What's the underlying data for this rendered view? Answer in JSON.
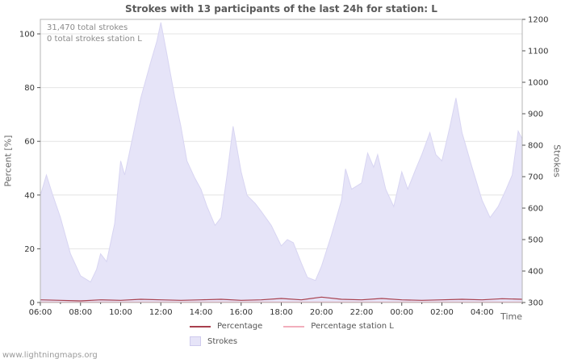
{
  "page": {
    "watermark": "www.lightningmaps.org"
  },
  "chart_data": {
    "type": "area",
    "title": "Strokes with 13 participants of the last 24h for station: L",
    "annotations": [
      "31,470 total strokes",
      "0 total strokes station L"
    ],
    "x_axis": {
      "label": "Time",
      "ticks": [
        "06:00",
        "08:00",
        "10:00",
        "12:00",
        "14:00",
        "16:00",
        "18:00",
        "20:00",
        "22:00",
        "00:00",
        "02:00",
        "04:00"
      ],
      "tick_hours": [
        0,
        2,
        4,
        6,
        8,
        10,
        12,
        14,
        16,
        18,
        20,
        22
      ],
      "range_hours": [
        0,
        24
      ]
    },
    "y_left": {
      "label": "Percent  [%]",
      "ticks": [
        0,
        20,
        40,
        60,
        80,
        100
      ],
      "range": [
        0,
        100
      ]
    },
    "y_right": {
      "label": "Strokes",
      "ticks": [
        300,
        400,
        500,
        600,
        700,
        800,
        900,
        1000,
        1100,
        1200
      ],
      "range": [
        300,
        1200
      ]
    },
    "style": {
      "grid": "#e4e4e4",
      "border": "#b4b4b4",
      "text": "#333333",
      "tick": "#555555"
    },
    "series": [
      {
        "name": "Strokes",
        "type": "area",
        "axis": "right",
        "color": "#e6e4f8",
        "edge": "#d8d5f2",
        "points": [
          [
            0,
            640
          ],
          [
            0.3,
            705
          ],
          [
            0.6,
            645
          ],
          [
            1,
            570
          ],
          [
            1.5,
            455
          ],
          [
            2,
            385
          ],
          [
            2.5,
            365
          ],
          [
            2.8,
            405
          ],
          [
            3,
            455
          ],
          [
            3.3,
            430
          ],
          [
            3.7,
            550
          ],
          [
            4,
            750
          ],
          [
            4.2,
            705
          ],
          [
            4.5,
            795
          ],
          [
            5,
            950
          ],
          [
            5.5,
            1065
          ],
          [
            5.8,
            1130
          ],
          [
            6,
            1190
          ],
          [
            6.3,
            1090
          ],
          [
            6.7,
            950
          ],
          [
            7,
            860
          ],
          [
            7.3,
            750
          ],
          [
            7.7,
            695
          ],
          [
            8,
            660
          ],
          [
            8.3,
            605
          ],
          [
            8.7,
            545
          ],
          [
            9,
            570
          ],
          [
            9.3,
            705
          ],
          [
            9.6,
            860
          ],
          [
            10,
            715
          ],
          [
            10.3,
            640
          ],
          [
            10.7,
            615
          ],
          [
            11,
            590
          ],
          [
            11.5,
            545
          ],
          [
            12,
            480
          ],
          [
            12.3,
            500
          ],
          [
            12.6,
            490
          ],
          [
            13,
            425
          ],
          [
            13.3,
            380
          ],
          [
            13.7,
            370
          ],
          [
            14,
            415
          ],
          [
            14.5,
            515
          ],
          [
            15,
            625
          ],
          [
            15.2,
            725
          ],
          [
            15.5,
            660
          ],
          [
            16,
            680
          ],
          [
            16.3,
            775
          ],
          [
            16.6,
            730
          ],
          [
            16.8,
            770
          ],
          [
            17.2,
            660
          ],
          [
            17.6,
            605
          ],
          [
            18,
            715
          ],
          [
            18.3,
            660
          ],
          [
            18.7,
            725
          ],
          [
            19,
            770
          ],
          [
            19.4,
            840
          ],
          [
            19.7,
            770
          ],
          [
            20,
            750
          ],
          [
            20.4,
            860
          ],
          [
            20.7,
            950
          ],
          [
            21,
            840
          ],
          [
            21.5,
            730
          ],
          [
            22,
            625
          ],
          [
            22.4,
            570
          ],
          [
            22.8,
            605
          ],
          [
            23.2,
            660
          ],
          [
            23.5,
            705
          ],
          [
            23.8,
            845
          ],
          [
            24,
            820
          ]
        ]
      },
      {
        "name": "Percentage",
        "type": "line",
        "axis": "left",
        "color": "#a8404e",
        "points": [
          [
            0,
            1
          ],
          [
            1,
            0.8
          ],
          [
            2,
            0.6
          ],
          [
            3,
            1
          ],
          [
            4,
            0.8
          ],
          [
            5,
            1.2
          ],
          [
            6,
            1
          ],
          [
            7,
            0.8
          ],
          [
            8,
            1
          ],
          [
            9,
            1.2
          ],
          [
            10,
            0.8
          ],
          [
            11,
            1
          ],
          [
            12,
            1.5
          ],
          [
            13,
            1
          ],
          [
            14,
            2
          ],
          [
            15,
            1.2
          ],
          [
            16,
            1
          ],
          [
            17,
            1.5
          ],
          [
            18,
            1
          ],
          [
            19,
            0.8
          ],
          [
            20,
            1
          ],
          [
            21,
            1.2
          ],
          [
            22,
            1
          ],
          [
            23,
            1.4
          ],
          [
            24,
            1.2
          ]
        ],
        "total_label": "31,470 total strokes"
      },
      {
        "name": "Percentage station L",
        "type": "line",
        "axis": "left",
        "color": "#f2aebc",
        "points": [
          [
            0,
            0.15
          ],
          [
            2,
            0.15
          ],
          [
            4,
            0.15
          ],
          [
            6,
            0.15
          ],
          [
            8,
            0.15
          ],
          [
            10,
            0.15
          ],
          [
            12,
            0.15
          ],
          [
            14,
            0.15
          ],
          [
            16,
            0.15
          ],
          [
            18,
            0.15
          ],
          [
            20,
            0.15
          ],
          [
            22,
            0.15
          ],
          [
            24,
            0.15
          ]
        ],
        "total_label": "0 total strokes station L"
      }
    ]
  }
}
